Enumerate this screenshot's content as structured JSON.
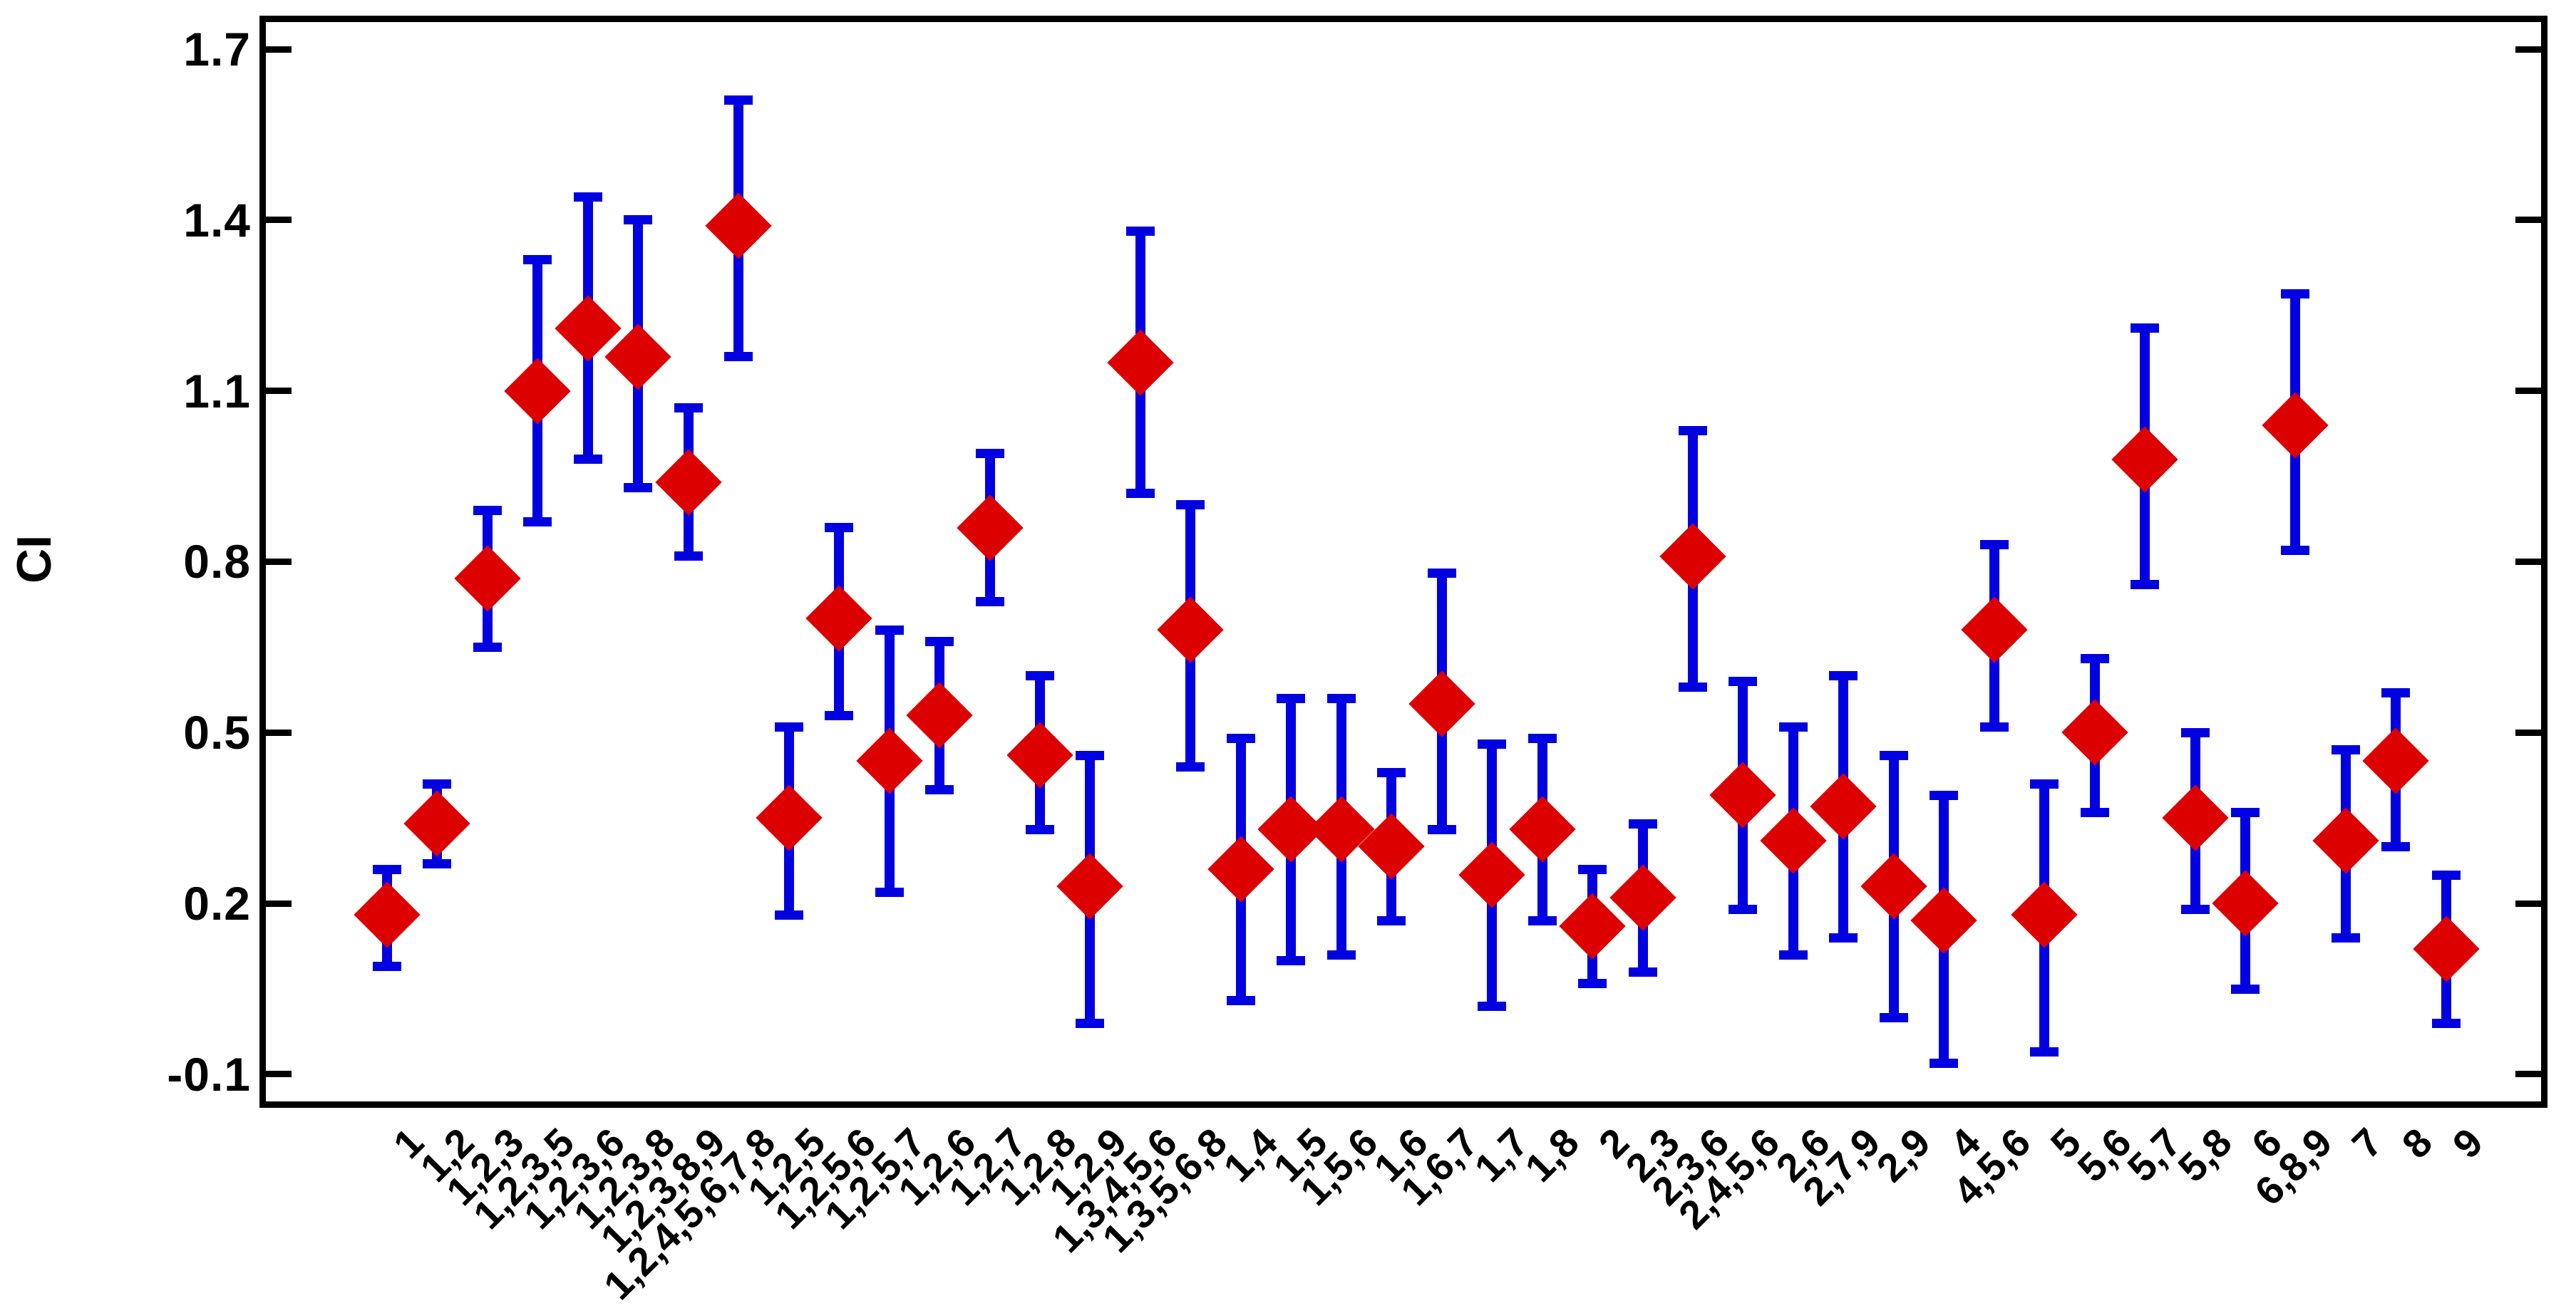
{
  "colors": {
    "marker_red": "#dd0000",
    "errorbar_blue": "#0000e0",
    "axis_black": "#000000",
    "background": "#ffffff"
  },
  "chart_data": {
    "type": "scatter",
    "subtype": "means-with-confidence-intervals",
    "title": "",
    "xlabel": "",
    "ylabel": "CI",
    "ylim": [
      -0.15,
      1.75
    ],
    "grid": "off",
    "legend": "none",
    "ytick_labels": [
      "1.7",
      "1.4",
      "1.1",
      "0.8",
      "0.5",
      "0.2",
      "-0.1"
    ],
    "ytick_values": [
      1.7,
      1.4,
      1.1,
      0.8,
      0.5,
      0.2,
      -0.1
    ],
    "categories": [
      "1",
      "1,2",
      "1,2,3",
      "1,2,3,5",
      "1,2,3,6",
      "1,2,3,8",
      "1,2,3,8,9",
      "1,2,4,5,6,7,8",
      "1,2,5",
      "1,2,5,6",
      "1,2,5,7",
      "1,2,6",
      "1,2,7",
      "1,2,8",
      "1,2,9",
      "1,3,4,5,6",
      "1,3,5,6,8",
      "1,4",
      "1,5",
      "1,5,6",
      "1,6",
      "1,6,7",
      "1,7",
      "1,8",
      "2",
      "2,3",
      "2,3,6",
      "2,4,5,6",
      "2,6",
      "2,7,9",
      "2,9",
      "4",
      "4,5,6",
      "5",
      "5,6",
      "5,7",
      "5,8",
      "6",
      "6,8,9",
      "7",
      "8",
      "9"
    ],
    "series": [
      {
        "name": "CI",
        "marker": "red-diamond",
        "errorbar": "blue-capped",
        "points": [
          {
            "label": "1",
            "value": 0.18,
            "lo": 0.09,
            "hi": 0.26
          },
          {
            "label": "1,2",
            "value": 0.34,
            "lo": 0.27,
            "hi": 0.41
          },
          {
            "label": "1,2,3",
            "value": 0.77,
            "lo": 0.65,
            "hi": 0.89
          },
          {
            "label": "1,2,3,5",
            "value": 1.1,
            "lo": 0.87,
            "hi": 1.33
          },
          {
            "label": "1,2,3,6",
            "value": 1.21,
            "lo": 0.98,
            "hi": 1.44
          },
          {
            "label": "1,2,3,8",
            "value": 1.16,
            "lo": 0.93,
            "hi": 1.4
          },
          {
            "label": "1,2,3,8,9",
            "value": 0.94,
            "lo": 0.81,
            "hi": 1.07
          },
          {
            "label": "1,2,4,5,6,7,8",
            "value": 1.39,
            "lo": 1.16,
            "hi": 1.61
          },
          {
            "label": "1,2,5",
            "value": 0.35,
            "lo": 0.18,
            "hi": 0.51
          },
          {
            "label": "1,2,5,6",
            "value": 0.7,
            "lo": 0.53,
            "hi": 0.86
          },
          {
            "label": "1,2,5,7",
            "value": 0.45,
            "lo": 0.22,
            "hi": 0.68
          },
          {
            "label": "1,2,6",
            "value": 0.53,
            "lo": 0.4,
            "hi": 0.66
          },
          {
            "label": "1,2,7",
            "value": 0.86,
            "lo": 0.73,
            "hi": 0.99
          },
          {
            "label": "1,2,8",
            "value": 0.46,
            "lo": 0.33,
            "hi": 0.6
          },
          {
            "label": "1,2,9",
            "value": 0.23,
            "lo": -0.01,
            "hi": 0.46
          },
          {
            "label": "1,3,4,5,6",
            "value": 1.15,
            "lo": 0.92,
            "hi": 1.38
          },
          {
            "label": "1,3,5,6,8",
            "value": 0.68,
            "lo": 0.44,
            "hi": 0.9
          },
          {
            "label": "1,4",
            "value": 0.26,
            "lo": 0.03,
            "hi": 0.49
          },
          {
            "label": "1,5",
            "value": 0.33,
            "lo": 0.1,
            "hi": 0.56
          },
          {
            "label": "1,5,6",
            "value": 0.33,
            "lo": 0.11,
            "hi": 0.56
          },
          {
            "label": "1,6",
            "value": 0.3,
            "lo": 0.17,
            "hi": 0.43
          },
          {
            "label": "1,6,7",
            "value": 0.55,
            "lo": 0.33,
            "hi": 0.78
          },
          {
            "label": "1,7",
            "value": 0.25,
            "lo": 0.02,
            "hi": 0.48
          },
          {
            "label": "1,8",
            "value": 0.33,
            "lo": 0.17,
            "hi": 0.49
          },
          {
            "label": "2",
            "value": 0.16,
            "lo": 0.06,
            "hi": 0.26
          },
          {
            "label": "2,3",
            "value": 0.21,
            "lo": 0.08,
            "hi": 0.34
          },
          {
            "label": "2,3,6",
            "value": 0.81,
            "lo": 0.58,
            "hi": 1.03
          },
          {
            "label": "2,4,5,6",
            "value": 0.39,
            "lo": 0.19,
            "hi": 0.59
          },
          {
            "label": "2,6",
            "value": 0.31,
            "lo": 0.11,
            "hi": 0.51
          },
          {
            "label": "2,7,9",
            "value": 0.37,
            "lo": 0.14,
            "hi": 0.6
          },
          {
            "label": "2,9",
            "value": 0.23,
            "lo": 0.0,
            "hi": 0.46
          },
          {
            "label": "4",
            "value": 0.17,
            "lo": -0.08,
            "hi": 0.39
          },
          {
            "label": "4,5,6",
            "value": 0.68,
            "lo": 0.51,
            "hi": 0.83
          },
          {
            "label": "5",
            "value": 0.18,
            "lo": -0.06,
            "hi": 0.41
          },
          {
            "label": "5,6",
            "value": 0.5,
            "lo": 0.36,
            "hi": 0.63
          },
          {
            "label": "5,7",
            "value": 0.98,
            "lo": 0.76,
            "hi": 1.21
          },
          {
            "label": "5,8",
            "value": 0.35,
            "lo": 0.19,
            "hi": 0.5
          },
          {
            "label": "6",
            "value": 0.2,
            "lo": 0.05,
            "hi": 0.36
          },
          {
            "label": "6,8,9",
            "value": 1.04,
            "lo": 0.82,
            "hi": 1.27
          },
          {
            "label": "7",
            "value": 0.31,
            "lo": 0.14,
            "hi": 0.47
          },
          {
            "label": "8",
            "value": 0.45,
            "lo": 0.3,
            "hi": 0.57
          },
          {
            "label": "9",
            "value": 0.12,
            "lo": -0.01,
            "hi": 0.25
          }
        ]
      }
    ]
  }
}
